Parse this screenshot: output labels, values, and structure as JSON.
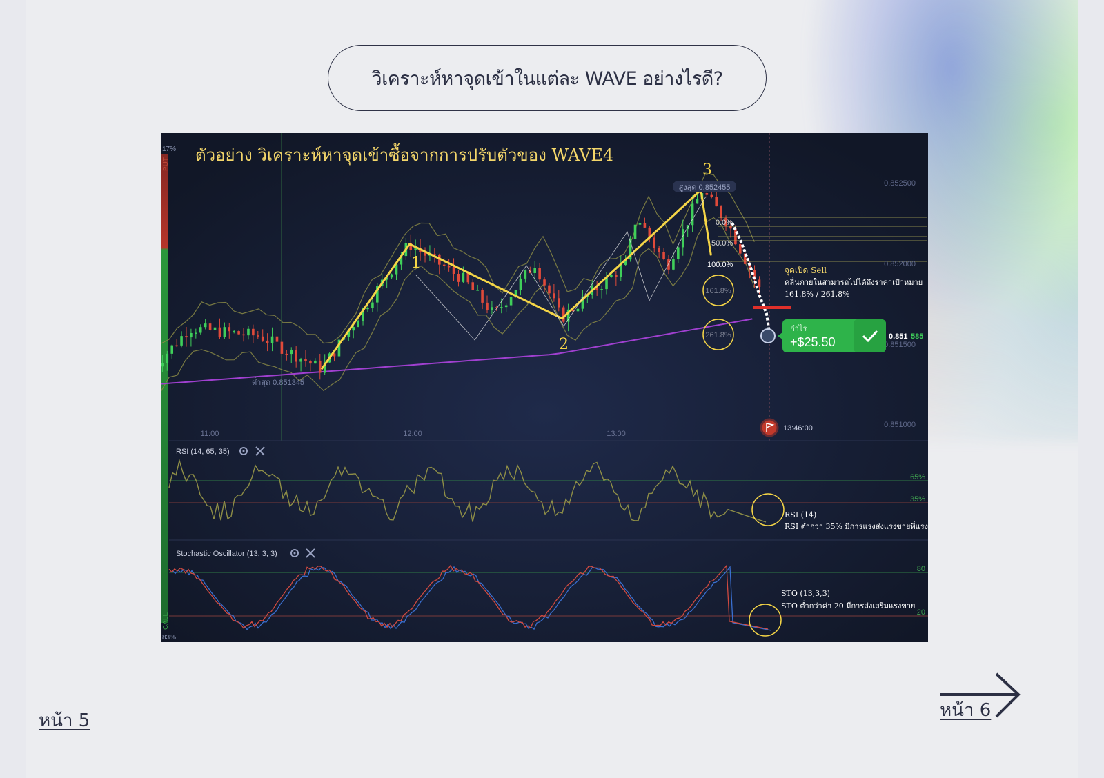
{
  "page": {
    "title": "วิเคราะห์หาจุดเข้าในแต่ละ WAVE อย่างไรดี?",
    "prev_link": "หน้า 5",
    "next_link": "หน้า 6"
  },
  "chart_data": {
    "type": "line",
    "title": "ตัวอย่าง วิเคราะห์หาจุดเข้าซื้อจากการปรับตัวของ WAVE4",
    "x_ticks": [
      "11:00",
      "12:00",
      "13:00"
    ],
    "y_ticks": [
      "0.852500",
      "0.852000",
      "0.851500",
      "0.851000"
    ],
    "ylim": [
      0.8508,
      0.8528
    ],
    "wave_labels": [
      {
        "label": "1",
        "time": "11:59",
        "price": 0.85212
      },
      {
        "label": "2",
        "time": "12:44",
        "price": 0.85166
      },
      {
        "label": "3",
        "time": "13:25",
        "price": 0.852455
      }
    ],
    "wave_path": [
      {
        "time": "11:33",
        "price": 0.851345
      },
      {
        "time": "11:59",
        "price": 0.85212
      },
      {
        "time": "12:44",
        "price": 0.85166
      },
      {
        "time": "13:25",
        "price": 0.852455
      }
    ],
    "high_label": "สูงสุด 0.852455",
    "low_label": "ต่ำสุด 0.851345",
    "fib_levels": [
      "0.0%",
      "50.0%",
      "100.0%",
      "161.8%",
      "261.8%"
    ],
    "sell_note": {
      "title": "จุดเปิด Sell",
      "line1": "คลื่นภายในสามารถไปได้ถึงราคาเป้าหมาย",
      "line2": "161.8% / 261.8%"
    },
    "profit_badge": {
      "label": "กำไร",
      "value": "+$25.50"
    },
    "current_price": {
      "main": "0.851",
      "tail": "585"
    },
    "expiry_time": "13:46:00",
    "side_labels": {
      "top_pct": "17%",
      "put": "PUT",
      "call": "CALL",
      "bottom_pct": "83%"
    },
    "rsi": {
      "name": "RSI (14, 65, 35)",
      "levels": [
        "65%",
        "35%"
      ],
      "note_title": "RSI (14)",
      "note_body": "RSI ต่ำกว่า 35% มีการแรงส่งแรงขายที่แรง"
    },
    "stochastic": {
      "name": "Stochastic Oscillator (13, 3, 3)",
      "levels": [
        "80",
        "20"
      ],
      "note_title": "STO (13,3,3)",
      "note_body": "STO ต่ำกว่าค่า 20 มีการส่งเสริมแรงขาย"
    },
    "colors": {
      "wave": "#f5d547",
      "bull_candle": "#3fcf5a",
      "bear_candle": "#e04a3a",
      "ma": "#a040d0",
      "bands": "#8a8a45",
      "profit": "#2eb34a",
      "rsi_line": "#8e8e46",
      "sto_k": "#d04a40",
      "sto_d": "#3a6fd0"
    }
  }
}
